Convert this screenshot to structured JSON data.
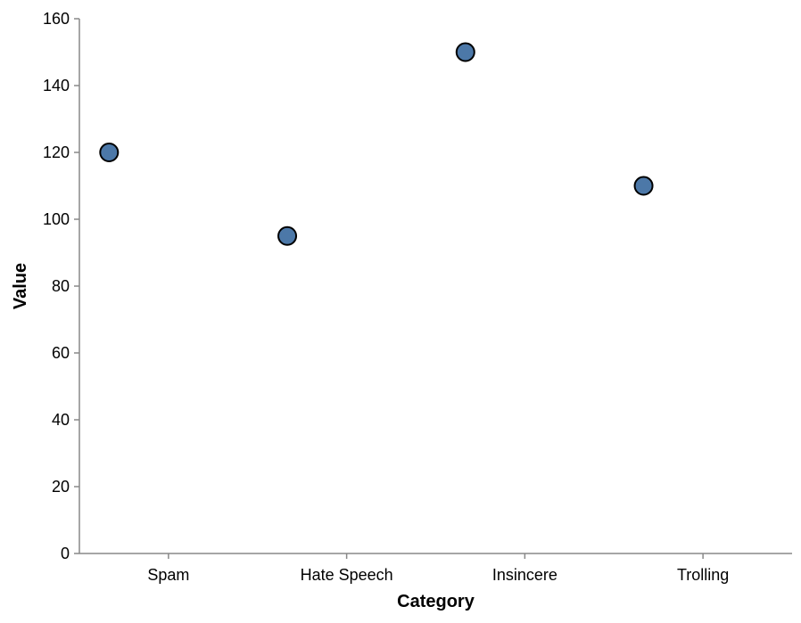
{
  "colors": {
    "point_fill": "#4c78a8",
    "point_stroke": "#000000",
    "axis": "#888888"
  },
  "chart_data": {
    "type": "scatter",
    "title": "",
    "xlabel": "Category",
    "ylabel": "Value",
    "categories": [
      "Spam",
      "Hate Speech",
      "Insincere",
      "Trolling"
    ],
    "points": [
      {
        "category": "Spam",
        "value": 120
      },
      {
        "category": "Hate Speech",
        "value": 95
      },
      {
        "category": "Insincere",
        "value": 150
      },
      {
        "category": "Trolling",
        "value": 110
      }
    ],
    "ylim": [
      0,
      160
    ],
    "yticks": [
      0,
      20,
      40,
      60,
      80,
      100,
      120,
      140,
      160
    ],
    "grid": false
  }
}
